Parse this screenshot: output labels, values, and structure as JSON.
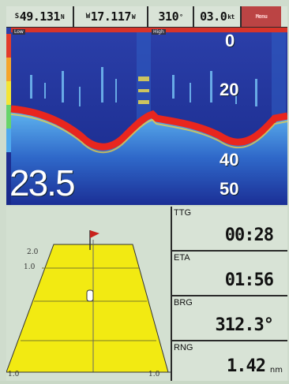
{
  "status_bar": {
    "latitude": {
      "prefix": "S",
      "value": "49.131",
      "unit": "N"
    },
    "longitude": {
      "prefix": "W",
      "value": "17.117",
      "unit": "W"
    },
    "heading": {
      "value": "310",
      "unit": "°"
    },
    "speed": {
      "value": "03.0",
      "unit": "kt"
    },
    "menu_label": "Menu"
  },
  "sonar": {
    "low_tag": "Low",
    "high_tag": "High",
    "depth_scale": [
      "0",
      "20",
      "40",
      "50"
    ],
    "current_depth": "23.5",
    "colors": {
      "water": "#1b2f96",
      "bottom": "#e8261e",
      "echo": "#7fd1ff"
    }
  },
  "navigation": {
    "scale_labels": [
      "2.0",
      "1.0",
      "1.0",
      "1.0"
    ],
    "colors": {
      "course": "#f2ea12",
      "target_flag": "#c8221c"
    }
  },
  "data_panels": [
    {
      "label": "TTG",
      "value": "00:28",
      "unit": ""
    },
    {
      "label": "ETA",
      "value": "01:56",
      "unit": ""
    },
    {
      "label": "BRG",
      "value": "312.3°",
      "unit": ""
    },
    {
      "label": "RNG",
      "value": "1.42",
      "unit": "nm"
    }
  ]
}
